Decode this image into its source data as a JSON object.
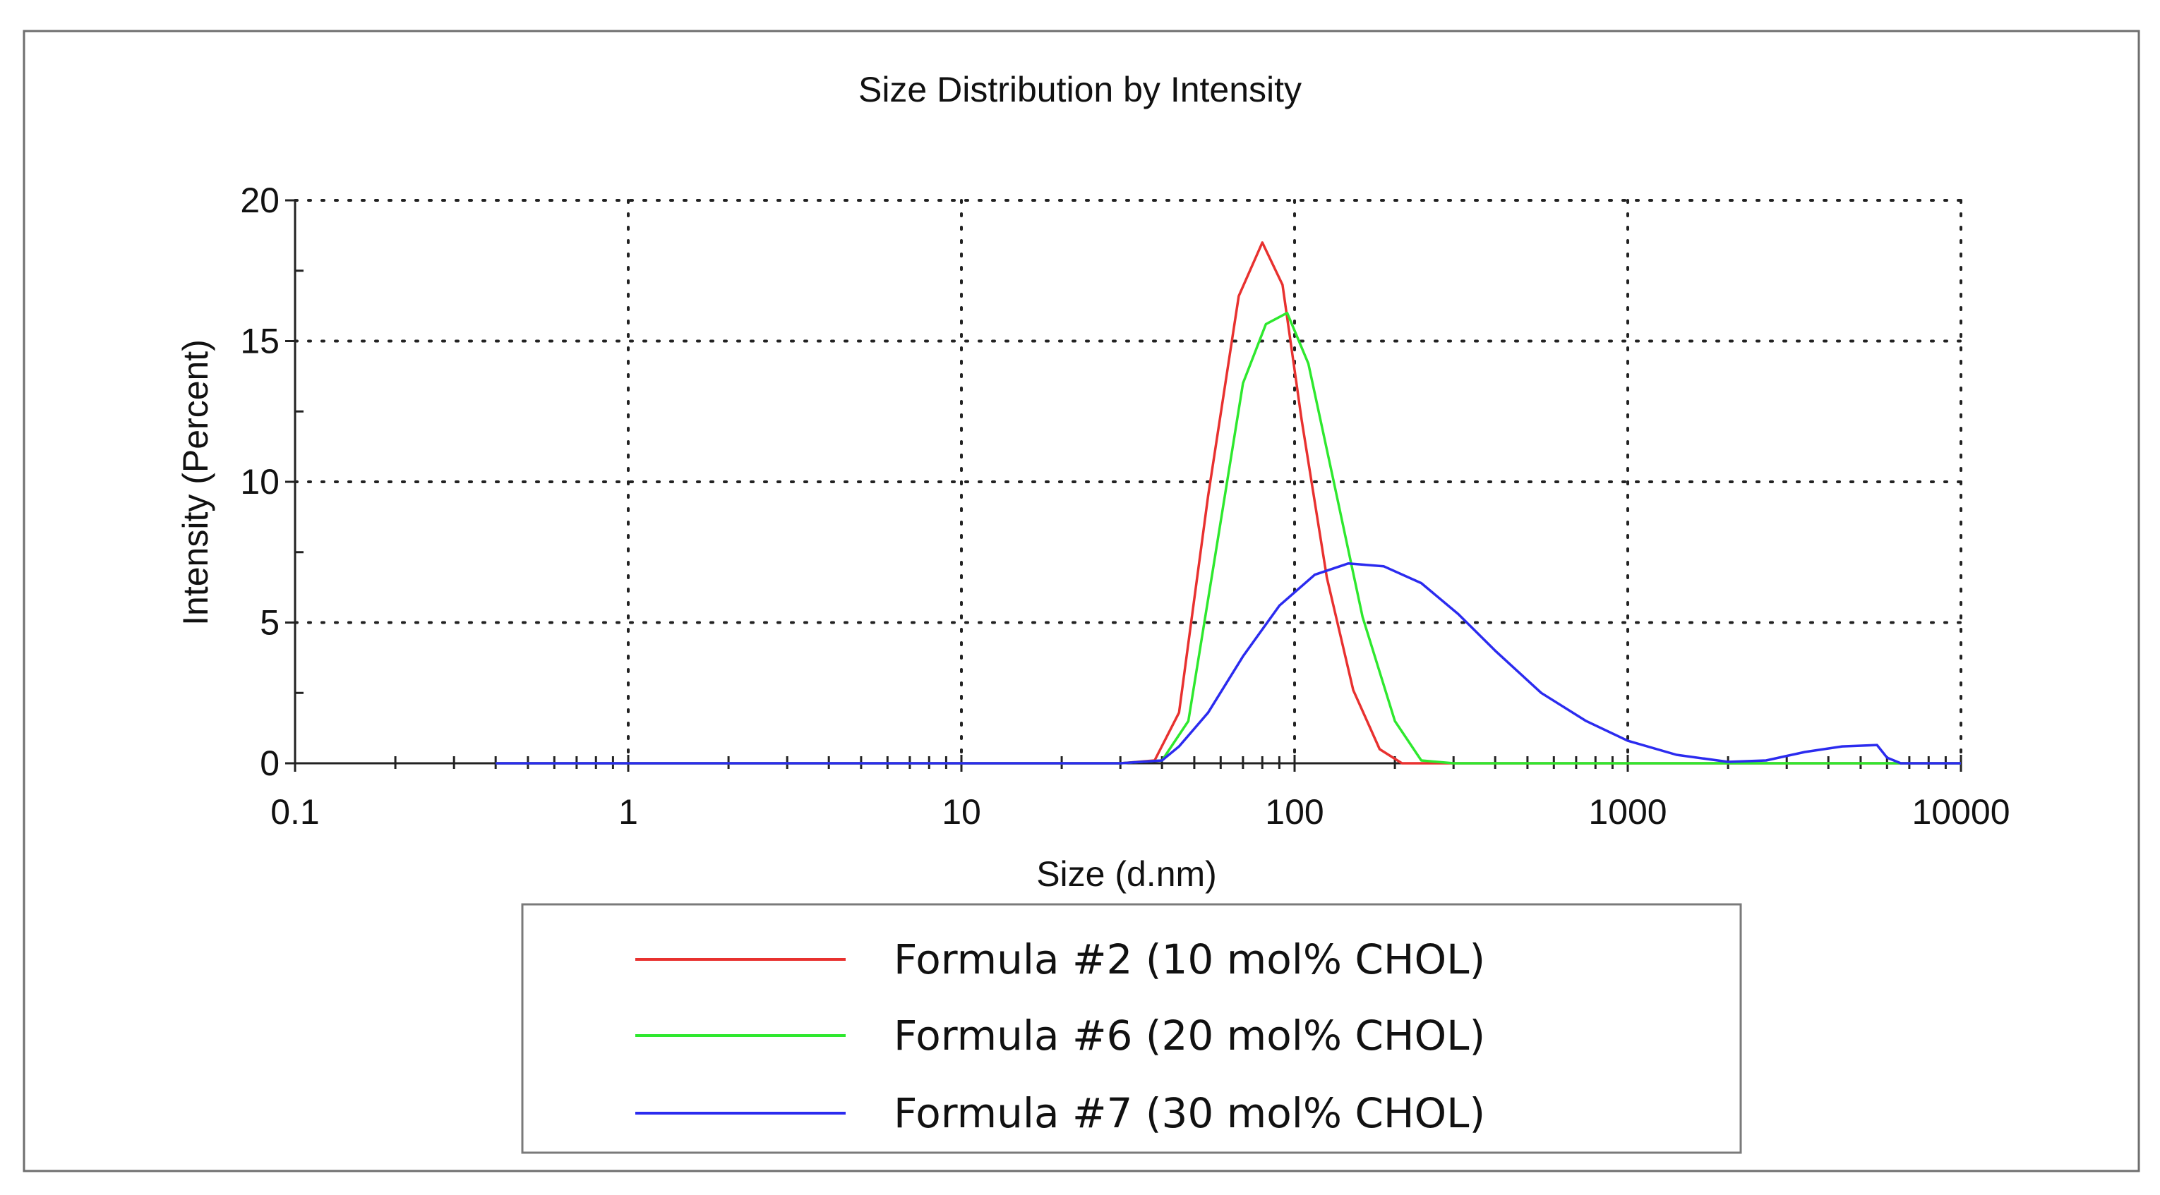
{
  "chart_data": {
    "type": "line",
    "title": "Size Distribution by Intensity",
    "xlabel": "Size (d.nm)",
    "ylabel": "Intensity (Percent)",
    "xscale": "log",
    "xlim": [
      0.1,
      10000
    ],
    "ylim": [
      0,
      20
    ],
    "xticks": [
      0.1,
      1,
      10,
      100,
      1000,
      10000
    ],
    "xtick_labels": [
      "0.1",
      "1",
      "10",
      "100",
      "1000",
      "10000"
    ],
    "yticks": [
      0,
      5,
      10,
      15,
      20
    ],
    "ytick_labels": [
      "0",
      "5",
      "10",
      "15",
      "20"
    ],
    "grid": "dotted",
    "legend_position": "bottom-center",
    "series": [
      {
        "name": "Formula #2 (10 mol% CHOL)",
        "color": "#e8312f",
        "x": [
          0.4,
          1,
          10,
          30,
          38,
          45,
          55,
          68,
          80,
          92,
          105,
          125,
          150,
          180,
          210,
          250,
          500,
          1000,
          5000,
          10000
        ],
        "y": [
          0,
          0,
          0,
          0,
          0.1,
          1.8,
          9.5,
          16.6,
          18.5,
          17.0,
          12.2,
          6.6,
          2.6,
          0.5,
          0,
          0,
          0,
          0,
          0,
          0
        ]
      },
      {
        "name": "Formula #6 (20 mol% CHOL)",
        "color": "#2ee82e",
        "x": [
          0.4,
          1,
          10,
          30,
          40,
          48,
          58,
          70,
          82,
          95,
          110,
          130,
          160,
          200,
          240,
          300,
          1000,
          5000,
          10000
        ],
        "y": [
          0,
          0,
          0,
          0,
          0.1,
          1.5,
          7.5,
          13.5,
          15.6,
          16.0,
          14.2,
          10.2,
          5.2,
          1.5,
          0.1,
          0,
          0,
          0,
          0
        ]
      },
      {
        "name": "Formula #7 (30 mol% CHOL)",
        "color": "#2b2bef",
        "x": [
          0.4,
          1,
          10,
          30,
          40,
          45,
          55,
          70,
          90,
          115,
          145,
          185,
          240,
          310,
          400,
          550,
          750,
          1000,
          1400,
          2000,
          2600,
          3400,
          4400,
          5600,
          6000,
          6600,
          10000
        ],
        "y": [
          0,
          0,
          0,
          0,
          0.1,
          0.6,
          1.8,
          3.8,
          5.6,
          6.7,
          7.1,
          7.0,
          6.4,
          5.3,
          4.0,
          2.5,
          1.5,
          0.8,
          0.3,
          0.05,
          0.1,
          0.4,
          0.6,
          0.65,
          0.2,
          0,
          0
        ]
      }
    ]
  }
}
